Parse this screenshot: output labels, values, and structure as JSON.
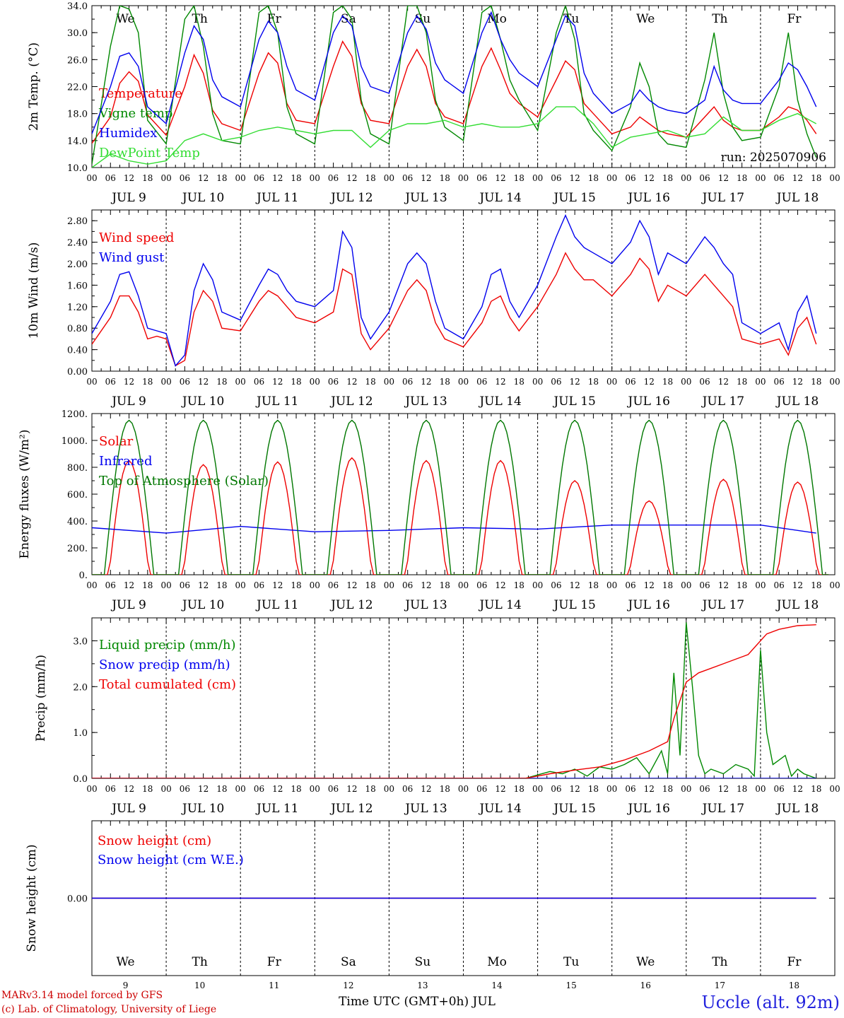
{
  "chart_data": [
    {
      "type": "line",
      "id": "temp",
      "ylabel": "2m Temp. (°C)",
      "ylim": [
        10,
        34
      ],
      "yticks": [
        "10.0",
        "14.0",
        "18.0",
        "22.0",
        "26.0",
        "30.0",
        "34.0"
      ],
      "ytick_values": [
        10,
        14,
        18,
        22,
        26,
        30,
        34
      ],
      "run_label": "run: 2025070906",
      "day_labels": [
        "We",
        "Th",
        "Fr",
        "Sa",
        "Su",
        "Mo",
        "Tu",
        "We",
        "Th",
        "Fr"
      ],
      "weekend_flags": [
        false,
        false,
        false,
        true,
        true,
        false,
        false,
        false,
        false,
        false
      ],
      "x_unit": "hours since JUL 9 00 UTC",
      "series": [
        {
          "name": "Temperature",
          "color": "#ee0000",
          "x": [
            0,
            6,
            9,
            12,
            15,
            18,
            24,
            30,
            33,
            36,
            39,
            42,
            48,
            54,
            57,
            60,
            63,
            66,
            72,
            78,
            81,
            84,
            87,
            90,
            96,
            102,
            105,
            108,
            111,
            114,
            120,
            126,
            129,
            132,
            135,
            138,
            144,
            150,
            153,
            156,
            159,
            162,
            168,
            174,
            177,
            180,
            183,
            186,
            192,
            198,
            201,
            204,
            207,
            210,
            216,
            222,
            225,
            228,
            231,
            234
          ],
          "y": [
            13.6,
            17.5,
            22.5,
            24.2,
            22.8,
            17.8,
            14.8,
            22.0,
            26.7,
            24.0,
            18.5,
            16.5,
            15.5,
            24.0,
            27.0,
            25.5,
            19.5,
            17.0,
            16.5,
            25.0,
            28.7,
            26.5,
            19.5,
            17.0,
            16.5,
            25.0,
            27.5,
            25.0,
            19.5,
            17.5,
            16.5,
            25.0,
            27.7,
            24.5,
            21.0,
            19.5,
            17.5,
            23.0,
            25.8,
            24.5,
            19.5,
            18.0,
            15.0,
            16.0,
            17.5,
            16.5,
            15.5,
            15.0,
            14.5,
            17.5,
            19.0,
            17.0,
            16.0,
            15.5,
            15.5,
            17.5,
            19.0,
            18.5,
            17.0,
            15.0
          ]
        },
        {
          "name": "Vigne temp",
          "color": "#008800",
          "x": [
            0,
            6,
            9,
            12,
            15,
            18,
            24,
            30,
            33,
            36,
            39,
            42,
            48,
            54,
            57,
            60,
            63,
            66,
            72,
            78,
            81,
            84,
            87,
            90,
            96,
            102,
            105,
            108,
            111,
            114,
            120,
            126,
            129,
            132,
            135,
            138,
            144,
            150,
            153,
            156,
            159,
            162,
            168,
            174,
            177,
            180,
            183,
            186,
            192,
            198,
            201,
            204,
            207,
            210,
            216,
            222,
            225,
            228,
            231,
            234
          ],
          "y": [
            10.5,
            28.0,
            34.0,
            33.5,
            30.0,
            17.0,
            13.5,
            32.0,
            34.0,
            28.0,
            18.0,
            14.0,
            13.5,
            33.0,
            34.0,
            30.0,
            19.0,
            15.0,
            13.5,
            33.0,
            34.0,
            32.0,
            20.0,
            15.0,
            13.5,
            34.0,
            34.0,
            30.0,
            20.0,
            16.0,
            14.0,
            33.0,
            34.0,
            29.0,
            23.0,
            20.0,
            15.5,
            30.0,
            34.0,
            29.0,
            18.0,
            15.5,
            12.5,
            19.0,
            25.5,
            22.0,
            15.0,
            13.5,
            13.0,
            23.0,
            30.0,
            21.0,
            16.0,
            14.0,
            14.5,
            22.0,
            30.0,
            20.0,
            15.0,
            11.5
          ]
        },
        {
          "name": "Humidex",
          "color": "#0000ee",
          "x": [
            0,
            6,
            9,
            12,
            15,
            18,
            24,
            30,
            33,
            36,
            39,
            42,
            48,
            54,
            57,
            60,
            63,
            66,
            72,
            78,
            81,
            84,
            87,
            90,
            96,
            102,
            105,
            108,
            111,
            114,
            120,
            126,
            129,
            132,
            135,
            138,
            144,
            150,
            153,
            156,
            159,
            162,
            168,
            174,
            177,
            180,
            183,
            186,
            192,
            198,
            201,
            204,
            207,
            210,
            216,
            222,
            225,
            228,
            231,
            234
          ],
          "y": [
            15.0,
            22.0,
            26.5,
            27.0,
            25.0,
            19.0,
            16.5,
            27.0,
            31.0,
            29.0,
            23.0,
            20.5,
            19.0,
            29.0,
            31.7,
            30.0,
            25.0,
            21.5,
            20.0,
            30.0,
            32.5,
            31.0,
            25.0,
            22.0,
            21.0,
            30.0,
            32.5,
            30.5,
            25.5,
            23.0,
            21.0,
            30.0,
            33.0,
            29.0,
            26.0,
            24.0,
            22.0,
            29.0,
            32.5,
            31.0,
            24.0,
            21.0,
            18.0,
            19.5,
            21.5,
            20.0,
            19.0,
            18.5,
            18.0,
            20.0,
            25.0,
            21.5,
            20.0,
            19.5,
            19.5,
            23.0,
            25.5,
            24.5,
            22.0,
            19.0
          ]
        },
        {
          "name": "DewPoint Temp",
          "color": "#33dd33",
          "x": [
            0,
            6,
            12,
            18,
            24,
            30,
            36,
            42,
            48,
            54,
            60,
            66,
            72,
            78,
            84,
            90,
            96,
            102,
            108,
            114,
            120,
            126,
            132,
            138,
            144,
            150,
            156,
            162,
            168,
            174,
            180,
            186,
            192,
            198,
            204,
            210,
            216,
            222,
            228,
            234
          ],
          "y": [
            10.0,
            12.0,
            11.0,
            10.5,
            11.0,
            14.0,
            15.0,
            14.0,
            14.5,
            15.5,
            16.0,
            15.5,
            15.0,
            15.5,
            15.5,
            13.0,
            15.5,
            16.5,
            16.5,
            17.0,
            16.0,
            16.5,
            16.0,
            16.0,
            16.5,
            19.0,
            19.0,
            16.5,
            13.0,
            14.5,
            15.0,
            15.5,
            14.5,
            15.0,
            17.5,
            15.5,
            15.5,
            17.0,
            18.0,
            16.5
          ]
        }
      ]
    },
    {
      "type": "line",
      "id": "wind",
      "ylabel": "10m Wind (m/s)",
      "ylim": [
        0,
        3.0
      ],
      "yticks": [
        "0.00",
        "0.40",
        "0.80",
        "1.20",
        "1.60",
        "2.00",
        "2.40",
        "2.80"
      ],
      "ytick_values": [
        0,
        0.4,
        0.8,
        1.2,
        1.6,
        2.0,
        2.4,
        2.8
      ],
      "series": [
        {
          "name": "Wind speed",
          "color": "#ee0000",
          "x": [
            0,
            6,
            9,
            12,
            15,
            18,
            21,
            24,
            27,
            30,
            33,
            36,
            39,
            42,
            48,
            54,
            57,
            60,
            63,
            66,
            72,
            78,
            81,
            84,
            87,
            90,
            96,
            102,
            105,
            108,
            111,
            114,
            120,
            126,
            129,
            132,
            135,
            138,
            144,
            150,
            153,
            156,
            159,
            162,
            168,
            174,
            177,
            180,
            183,
            186,
            192,
            198,
            201,
            204,
            207,
            210,
            216,
            222,
            225,
            228,
            231,
            234
          ],
          "y": [
            0.5,
            1.0,
            1.4,
            1.4,
            1.1,
            0.6,
            0.65,
            0.6,
            0.1,
            0.2,
            1.1,
            1.5,
            1.3,
            0.8,
            0.75,
            1.3,
            1.5,
            1.4,
            1.2,
            1.0,
            0.9,
            1.1,
            1.9,
            1.8,
            0.7,
            0.4,
            0.8,
            1.5,
            1.7,
            1.5,
            0.9,
            0.6,
            0.45,
            0.9,
            1.3,
            1.4,
            1.0,
            0.75,
            1.2,
            1.8,
            2.2,
            1.9,
            1.7,
            1.7,
            1.4,
            1.8,
            2.1,
            1.9,
            1.3,
            1.6,
            1.4,
            1.8,
            1.6,
            1.4,
            1.2,
            0.6,
            0.5,
            0.6,
            0.3,
            0.8,
            1.0,
            0.5
          ]
        },
        {
          "name": "Wind gust",
          "color": "#0000ee",
          "x": [
            0,
            6,
            9,
            12,
            15,
            18,
            21,
            24,
            27,
            30,
            33,
            36,
            39,
            42,
            48,
            54,
            57,
            60,
            63,
            66,
            72,
            78,
            81,
            84,
            87,
            90,
            96,
            102,
            105,
            108,
            111,
            114,
            120,
            126,
            129,
            132,
            135,
            138,
            144,
            150,
            153,
            156,
            159,
            162,
            168,
            174,
            177,
            180,
            183,
            186,
            192,
            198,
            201,
            204,
            207,
            210,
            216,
            222,
            225,
            228,
            231,
            234
          ],
          "y": [
            0.7,
            1.3,
            1.8,
            1.85,
            1.4,
            0.8,
            0.75,
            0.7,
            0.1,
            0.3,
            1.5,
            2.0,
            1.7,
            1.1,
            0.95,
            1.6,
            1.9,
            1.8,
            1.5,
            1.3,
            1.2,
            1.5,
            2.6,
            2.3,
            1.0,
            0.6,
            1.1,
            2.0,
            2.2,
            2.0,
            1.3,
            0.8,
            0.6,
            1.2,
            1.8,
            1.9,
            1.3,
            1.0,
            1.6,
            2.5,
            2.9,
            2.5,
            2.3,
            2.2,
            2.0,
            2.4,
            2.8,
            2.5,
            1.8,
            2.2,
            2.0,
            2.5,
            2.3,
            2.0,
            1.8,
            0.9,
            0.7,
            0.9,
            0.4,
            1.1,
            1.4,
            0.7
          ]
        }
      ]
    },
    {
      "type": "line",
      "id": "energy",
      "ylabel": "Energy fluxes (W/m²)",
      "ylim": [
        0,
        1200
      ],
      "yticks": [
        "0.",
        "200.",
        "400.",
        "600.",
        "800.",
        "1000.",
        "1200."
      ],
      "ytick_values": [
        0,
        200,
        400,
        600,
        800,
        1000,
        1200
      ],
      "series": [
        {
          "name": "Solar",
          "color": "#ee0000",
          "daily_peak": [
            850,
            820,
            840,
            870,
            850,
            850,
            700,
            550,
            710,
            690
          ]
        },
        {
          "name": "Infrared",
          "color": "#0000ee",
          "x": [
            0,
            24,
            48,
            72,
            96,
            120,
            144,
            168,
            192,
            216,
            234
          ],
          "y": [
            350,
            310,
            360,
            320,
            330,
            350,
            340,
            370,
            370,
            370,
            310
          ]
        },
        {
          "name": "Top of Atmosphere (Solar)",
          "color": "#007700",
          "daily_peak": [
            1150,
            1150,
            1150,
            1150,
            1150,
            1150,
            1150,
            1150,
            1150,
            1150
          ]
        }
      ]
    },
    {
      "type": "line",
      "id": "precip",
      "ylabel": "Precip (mm/h)",
      "ylim": [
        0,
        3.5
      ],
      "yticks": [
        "0.0",
        "1.0",
        "2.0",
        "3.0"
      ],
      "ytick_values": [
        0,
        1,
        2,
        3
      ],
      "series": [
        {
          "name": "Liquid precip (mm/h)",
          "color": "#008800",
          "x": [
            0,
            140,
            148,
            152,
            156,
            160,
            164,
            168,
            172,
            176,
            180,
            184,
            186,
            188,
            190,
            192,
            194,
            196,
            198,
            200,
            204,
            208,
            212,
            214,
            216,
            218,
            220,
            222,
            224,
            226,
            228,
            230,
            232,
            234
          ],
          "y": [
            0,
            0,
            0.15,
            0.1,
            0.2,
            0.05,
            0.25,
            0.2,
            0.3,
            0.45,
            0.1,
            0.6,
            0.1,
            2.3,
            0.5,
            3.4,
            2.0,
            0.5,
            0.1,
            0.2,
            0.1,
            0.3,
            0.2,
            0.05,
            2.8,
            1.0,
            0.3,
            0.4,
            0.5,
            0.05,
            0.2,
            0.1,
            0.05,
            0.0
          ]
        },
        {
          "name": "Snow precip (mm/h)",
          "color": "#0000ee",
          "x": [
            0,
            234
          ],
          "y": [
            0,
            0
          ]
        },
        {
          "name": "Total cumulated (cm)",
          "color": "#ee0000",
          "x": [
            0,
            140,
            148,
            156,
            164,
            172,
            180,
            186,
            188,
            192,
            196,
            204,
            208,
            212,
            216,
            218,
            222,
            228,
            234
          ],
          "y": [
            0,
            0,
            0.1,
            0.18,
            0.25,
            0.4,
            0.6,
            0.8,
            1.3,
            2.1,
            2.3,
            2.5,
            2.6,
            2.7,
            3.0,
            3.15,
            3.25,
            3.33,
            3.35
          ]
        }
      ]
    },
    {
      "type": "line",
      "id": "snow",
      "ylabel": "Snow height (cm)",
      "ylim": [
        -1,
        1
      ],
      "yticks": [
        "0.00"
      ],
      "ytick_values": [
        0
      ],
      "series": [
        {
          "name": "Snow height (cm)",
          "color": "#ee0000",
          "x": [
            0,
            234
          ],
          "y": [
            0,
            0
          ]
        },
        {
          "name": "Snow height (cm W.E.)",
          "color": "#0000ee",
          "x": [
            0,
            234
          ],
          "y": [
            0,
            0
          ]
        }
      ]
    }
  ],
  "x_axis": {
    "hour_ticks": [
      "00",
      "06",
      "12",
      "18"
    ],
    "date_labels": [
      "JUL  9",
      "JUL 10",
      "JUL 11",
      "JUL 12",
      "JUL 13",
      "JUL 14",
      "JUL 15",
      "JUL 16",
      "JUL 17",
      "JUL 18"
    ],
    "day_numbers": [
      "9",
      "10",
      "11",
      "12",
      "13",
      "14",
      "15",
      "16",
      "17",
      "18"
    ],
    "day_labels": [
      "We",
      "Th",
      "Fr",
      "Sa",
      "Su",
      "Mo",
      "Tu",
      "We",
      "Th",
      "Fr"
    ],
    "weekend_flags": [
      false,
      false,
      false,
      true,
      true,
      false,
      false,
      false,
      false,
      false
    ],
    "xlabel": "Time UTC (GMT+0h) JUL"
  },
  "footer": {
    "credit_line1": "MARv3.14 model forced by GFS",
    "credit_line2": "(c) Lab. of Climatology, University of Liege",
    "station": "Uccle (alt. 92m)"
  },
  "colors": {
    "red": "#ee0000",
    "blue": "#0000ee",
    "green": "#008800",
    "lightgreen": "#33dd33",
    "weekend": "#ee0000"
  }
}
